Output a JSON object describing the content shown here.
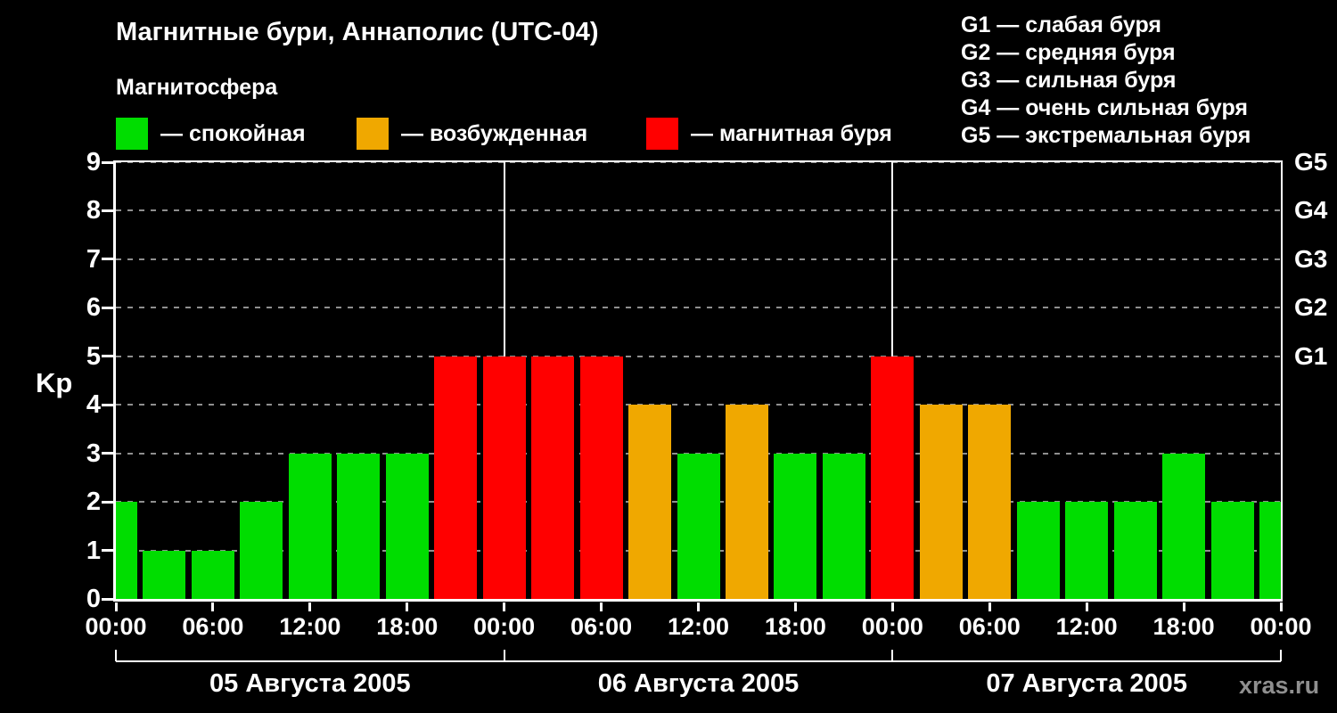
{
  "header": {
    "title": "Магнитные бури, Аннаполис (UTC-04)",
    "subtitle": "Магнитосфера"
  },
  "legend": {
    "items": [
      {
        "name": "quiet",
        "label": "— спокойная",
        "color": "#00dd00"
      },
      {
        "name": "excited",
        "label": "— возбужденная",
        "color": "#f0a800"
      },
      {
        "name": "storm",
        "label": "— магнитная буря",
        "color": "#ff0000"
      }
    ]
  },
  "storm_scale": [
    "G1 — слабая буря",
    "G2 — средняя буря",
    "G3 — сильная буря",
    "G4 — очень сильная буря",
    "G5 — экстремальная буря"
  ],
  "watermark": "xras.ru",
  "chart_data": {
    "type": "bar",
    "title": "Магнитные бури, Аннаполис (UTC-04)",
    "ylabel": "Kp",
    "ylim": [
      0,
      9
    ],
    "y_ticks": [
      0,
      1,
      2,
      3,
      4,
      5,
      6,
      7,
      8,
      9
    ],
    "right_axis": [
      {
        "kp": 5,
        "label": "G1"
      },
      {
        "kp": 6,
        "label": "G2"
      },
      {
        "kp": 7,
        "label": "G3"
      },
      {
        "kp": 8,
        "label": "G4"
      },
      {
        "kp": 9,
        "label": "G5"
      }
    ],
    "x_tick_labels": [
      "00:00",
      "06:00",
      "12:00",
      "18:00",
      "00:00",
      "06:00",
      "12:00",
      "18:00",
      "00:00",
      "06:00",
      "12:00",
      "18:00",
      "00:00"
    ],
    "interval_hours": 3,
    "days": [
      {
        "date": "05 Августа 2005",
        "kp_values": [
          2,
          1,
          1,
          2,
          3,
          3,
          3,
          5
        ]
      },
      {
        "date": "06 Августа 2005",
        "kp_values": [
          5,
          5,
          5,
          4,
          3,
          4,
          3,
          3
        ]
      },
      {
        "date": "07 Августа 2005",
        "kp_values": [
          5,
          4,
          4,
          2,
          2,
          2,
          3,
          2
        ]
      }
    ],
    "next_day_first_value": 2,
    "color_rule": {
      "quiet_max_kp": 3,
      "excited_kp": 4,
      "storm_min_kp": 5
    },
    "colors": {
      "quiet": "#00dd00",
      "excited": "#f0a800",
      "storm": "#ff0000"
    },
    "grid": "dashed horizontal at each Kp level, white vertical lines at day boundaries"
  }
}
